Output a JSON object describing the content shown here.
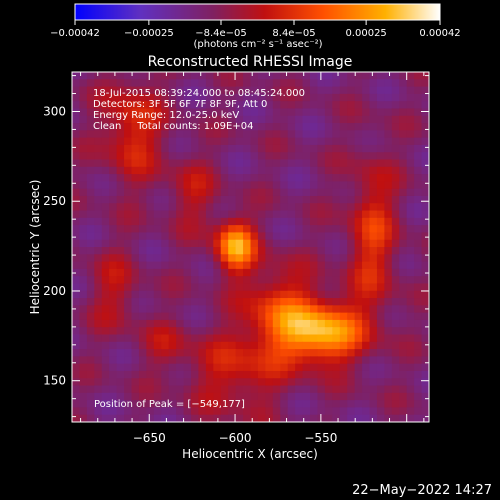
{
  "chart_data": {
    "type": "heatmap",
    "title": "Reconstructed RHESSI Image",
    "xlabel": "Heliocentric X (arcsec)",
    "ylabel": "Heliocentric Y (arcsec)",
    "xlim": [
      -695,
      -487
    ],
    "ylim": [
      127,
      322
    ],
    "x_ticks": [
      -650,
      -600,
      -550
    ],
    "x_tick_labels": [
      "−650",
      "−600",
      "−550"
    ],
    "y_ticks": [
      150,
      200,
      250,
      300
    ],
    "y_tick_labels": [
      "150",
      "200",
      "250",
      "300"
    ],
    "colorbar": {
      "ticks": [
        -0.00042,
        -0.00025,
        -8.4e-05,
        8.4e-05,
        0.00025,
        0.00042
      ],
      "tick_labels": [
        "−0.00042",
        "−0.00025",
        "−8.4e−05",
        "8.4e−05",
        "0.00025",
        "0.00042"
      ],
      "unit_label": "(photons cm⁻² s⁻¹ asec⁻²)",
      "range": [
        -0.00042,
        0.00042
      ],
      "colors": [
        "#0000ff",
        "#6030c0",
        "#802060",
        "#c01010",
        "#ff5000",
        "#ffb000",
        "#ffffff"
      ]
    },
    "sources": [
      {
        "x": -600,
        "y": 225,
        "sx": 8,
        "sy": 10,
        "amp": 0.0004
      },
      {
        "x": -549,
        "y": 177,
        "sx": 16,
        "sy": 12,
        "amp": 0.00042
      },
      {
        "x": -575,
        "y": 188,
        "sx": 14,
        "sy": 18,
        "amp": 0.00022
      },
      {
        "x": -660,
        "y": 290,
        "sx": 12,
        "sy": 20,
        "amp": 0.0002
      },
      {
        "x": -520,
        "y": 230,
        "sx": 10,
        "sy": 30,
        "amp": 0.0002
      },
      {
        "x": -625,
        "y": 255,
        "sx": 10,
        "sy": 14,
        "amp": 0.00012
      },
      {
        "x": -600,
        "y": 155,
        "sx": 18,
        "sy": 16,
        "amp": 0.00016
      },
      {
        "x": -670,
        "y": 200,
        "sx": 10,
        "sy": 16,
        "amp": 0.00012
      },
      {
        "x": -640,
        "y": 170,
        "sx": 10,
        "sy": 10,
        "amp": 0.0001
      }
    ],
    "annotations": [
      "18-Jul-2015 08:39:24.000 to 08:45:24.000",
      "Detectors: 3F 5F 6F 7F 8F 9F, Att 0",
      "Energy Range: 12.0-25.0 keV",
      "Clean     Total counts: 1.09E+04"
    ],
    "peak_label": "Position of Peak = [−549,177]",
    "peak": [
      -549,
      177
    ]
  },
  "timestamp": "22−May−2022 14:27"
}
